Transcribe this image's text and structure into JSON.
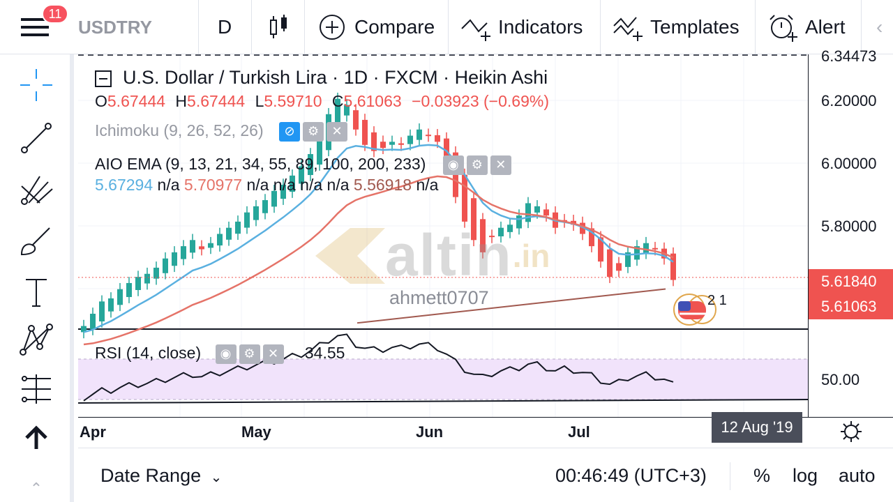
{
  "toolbar": {
    "badge_count": "11",
    "symbol": "USDTRY",
    "interval": "D",
    "compare_label": "Compare",
    "indicators_label": "Indicators",
    "templates_label": "Templates",
    "alert_label": "Alert"
  },
  "legend": {
    "title": "U.S. Dollar / Turkish Lira · 1D · FXCM · Heikin Ashi",
    "o_label": "O",
    "o_value": "5.67444",
    "h_label": "H",
    "h_value": "5.67444",
    "l_label": "L",
    "l_value": "5.59710",
    "c_label": "C",
    "c_value": "5.61063",
    "change": "−0.03923 (−0.69%)",
    "ichimoku": "Ichimoku (9, 26, 52, 26)",
    "aio_ema": "AIO EMA (9, 13, 21, 34, 55, 89, 100, 200, 233)",
    "ema_values": {
      "v1": "5.67294",
      "na1": "n/a",
      "v2": "5.70977",
      "na2": "n/a n/a n/a n/a",
      "v3": "5.56918",
      "na3": "n/a"
    },
    "rsi": "RSI (14, close)",
    "rsi_value": "34.55"
  },
  "watermark": {
    "brand": "altin",
    "suffix": ".in"
  },
  "author": "ahmett0707",
  "events_label": "2 1",
  "price_axis": {
    "top_cut": "6.34473",
    "labels": [
      "6.20000",
      "6.00000",
      "5.80000"
    ],
    "tag_current": "5.61840",
    "tag_close": "5.61063",
    "rsi_label": "50.00"
  },
  "time_axis": {
    "labels": [
      "Apr",
      "May",
      "Jun",
      "Jul"
    ],
    "cursor_date": "12 Aug '19"
  },
  "bottom": {
    "date_range": "Date Range",
    "clock": "00:46:49 (UTC+3)",
    "percent": "%",
    "log": "log",
    "auto": "auto"
  },
  "colors": {
    "up": "#26a69a",
    "down": "#ef5350",
    "ema_fast": "#5ab0e0",
    "ema_slow": "#e57368",
    "ema_long": "#a1594f",
    "rsi_band": "#f1e3fb"
  },
  "chart_data": {
    "type": "candlestick",
    "price_range": [
      5.45,
      6.34473
    ],
    "candles_close": [
      5.46,
      5.5,
      5.54,
      5.55,
      5.58,
      5.6,
      5.62,
      5.63,
      5.65,
      5.68,
      5.7,
      5.72,
      5.74,
      5.71,
      5.73,
      5.76,
      5.78,
      5.8,
      5.83,
      5.85,
      5.87,
      5.9,
      5.92,
      5.95,
      5.98,
      6.02,
      6.08,
      6.15,
      6.2,
      6.18,
      6.1,
      6.05,
      6.03,
      6.04,
      6.06,
      6.05,
      6.08,
      6.1,
      6.08,
      6.06,
      5.98,
      5.88,
      5.8,
      5.74,
      5.7,
      5.75,
      5.78,
      5.79,
      5.82,
      5.86,
      5.85,
      5.82,
      5.78,
      5.8,
      5.79,
      5.76,
      5.72,
      5.67,
      5.62,
      5.64,
      5.7,
      5.72,
      5.73,
      5.71,
      5.68,
      5.61
    ],
    "rsi_range": [
      30,
      70
    ],
    "rsi_last": 34.55
  }
}
